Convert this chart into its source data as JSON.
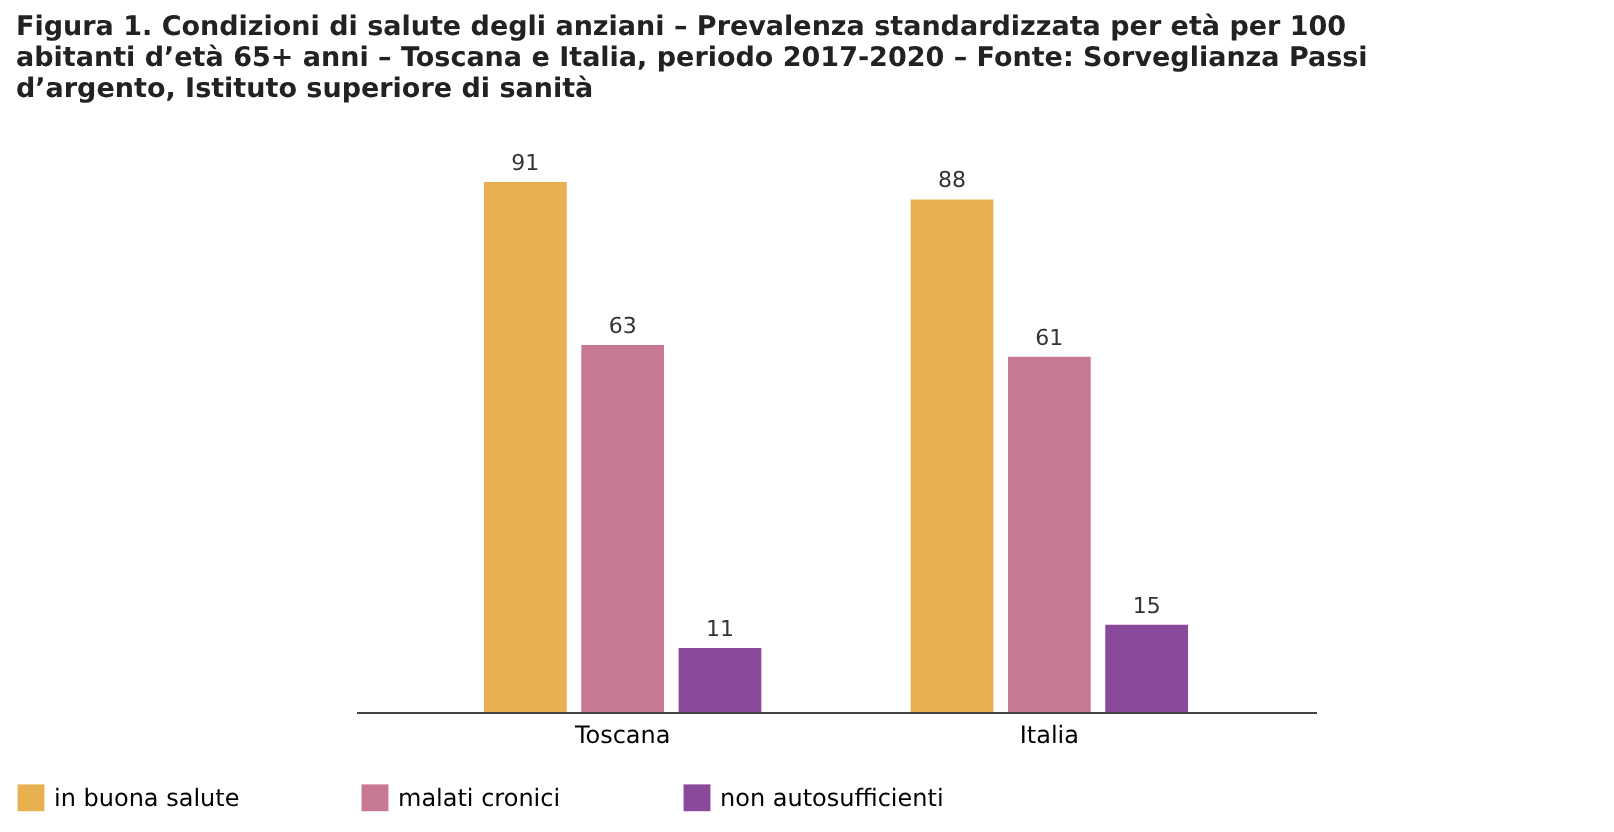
{
  "chart_data": {
    "type": "bar",
    "title": [
      "Figura 1. Condizioni di salute degli anziani – Prevalenza standardizzata per età per 100",
      "abitanti d’età 65+ anni – Toscana e Italia, periodo 2017-2020 – Fonte: Sorveglianza Passi",
      "d’argento, Istituto superiore di sanità"
    ],
    "categories": [
      "Toscana",
      "Italia"
    ],
    "series": [
      {
        "name": "in buona salute",
        "color": "#e8b04f",
        "values": [
          91,
          88
        ]
      },
      {
        "name": "malati cronici",
        "color": "#c77892",
        "values": [
          63,
          61
        ]
      },
      {
        "name": "non autosufficienti",
        "color": "#8a4a9c",
        "values": [
          11,
          15
        ]
      }
    ],
    "data_labels": true,
    "legend": "bottom",
    "grid": false
  }
}
